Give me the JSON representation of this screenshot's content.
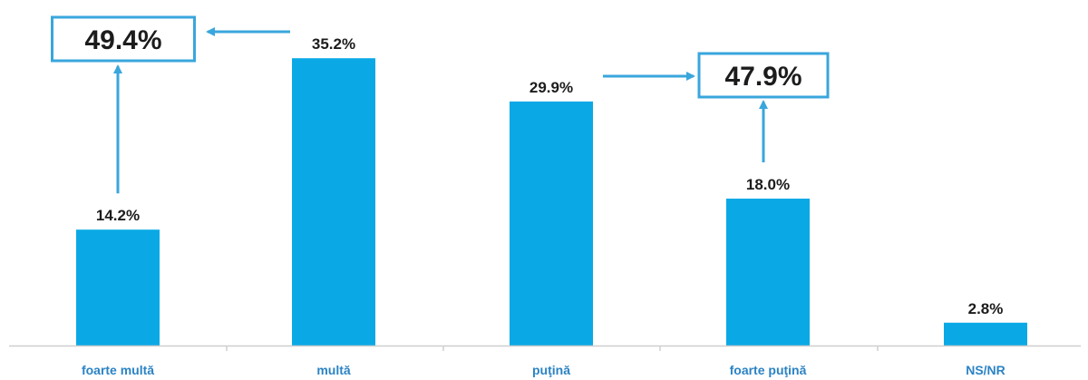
{
  "chart_data": {
    "type": "bar",
    "categories": [
      "foarte multă",
      "multă",
      "puţină",
      "foarte puţină",
      "NS/NR"
    ],
    "values": [
      14.2,
      35.2,
      29.9,
      18.0,
      2.8
    ],
    "value_labels": [
      "14.2%",
      "35.2%",
      "29.9%",
      "18.0%",
      "2.8%"
    ],
    "ylim": [
      0,
      40
    ],
    "grid": false,
    "legend": "none",
    "bar_color": "#0aa9e6",
    "accent_color": "#39a6dc",
    "annotations": [
      {
        "label": "49.4%",
        "combines": [
          "foarte multă",
          "multă"
        ]
      },
      {
        "label": "47.9%",
        "combines": [
          "puţină",
          "foarte puţină"
        ]
      }
    ]
  }
}
